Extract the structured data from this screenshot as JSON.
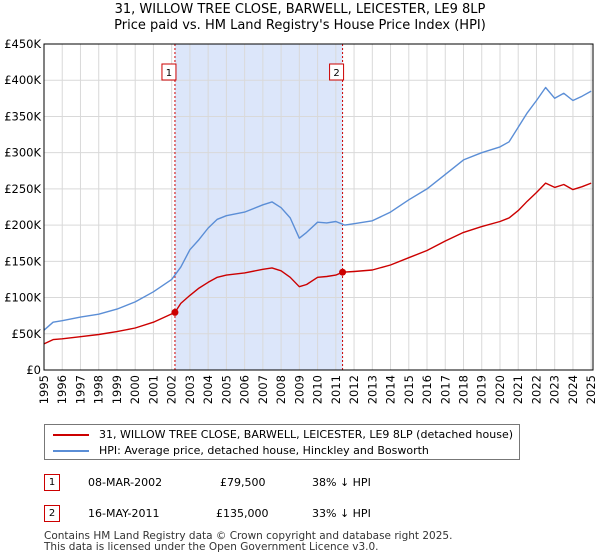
{
  "title_line1": "31, WILLOW TREE CLOSE, BARWELL, LEICESTER, LE9 8LP",
  "title_line2": "Price paid vs. HM Land Registry's House Price Index (HPI)",
  "colors": {
    "property": "#cc0000",
    "hpi": "#5b8ed6",
    "shade": "#dce6fa",
    "grid": "#d9d9d9",
    "marker_line": "#cc0000"
  },
  "chart_data": {
    "type": "line",
    "xlabel": "",
    "ylabel": "",
    "xlim": [
      1995,
      2025.1
    ],
    "ylim": [
      0,
      450000
    ],
    "yticks": [
      0,
      50000,
      100000,
      150000,
      200000,
      250000,
      300000,
      350000,
      400000,
      450000
    ],
    "ytick_labels": [
      "£0",
      "£50K",
      "£100K",
      "£150K",
      "£200K",
      "£250K",
      "£300K",
      "£350K",
      "£400K",
      "£450K"
    ],
    "xticks": [
      1995,
      1996,
      1997,
      1998,
      1999,
      2000,
      2001,
      2002,
      2003,
      2004,
      2005,
      2006,
      2007,
      2008,
      2009,
      2010,
      2011,
      2012,
      2013,
      2014,
      2015,
      2016,
      2017,
      2018,
      2019,
      2020,
      2021,
      2022,
      2023,
      2024,
      2025
    ],
    "xtick_labels": [
      "1995",
      "1996",
      "1997",
      "1998",
      "1999",
      "2000",
      "2001",
      "2002",
      "2003",
      "2004",
      "2005",
      "2006",
      "2007",
      "2008",
      "2009",
      "2010",
      "2011",
      "2012",
      "2013",
      "2014",
      "2015",
      "2016",
      "2017",
      "2018",
      "2019",
      "2020",
      "2021",
      "2022",
      "2023",
      "2024",
      "2025"
    ],
    "shaded_range": [
      2002.18,
      2011.37
    ],
    "series": [
      {
        "name": "31, WILLOW TREE CLOSE, BARWELL, LEICESTER, LE9 8LP (detached house)",
        "color": "#cc0000",
        "x": [
          1995,
          1995.5,
          1996,
          1997,
          1998,
          1999,
          2000,
          2001,
          2002.18,
          2002.5,
          2003,
          2003.5,
          2004,
          2004.5,
          2005,
          2006,
          2007,
          2007.5,
          2008,
          2008.5,
          2009,
          2009.4,
          2010,
          2010.5,
          2011,
          2011.37,
          2012,
          2013,
          2014,
          2015,
          2016,
          2017,
          2018,
          2019,
          2020,
          2020.5,
          2021,
          2021.5,
          2022,
          2022.5,
          2023,
          2023.5,
          2024,
          2024.5,
          2025
        ],
        "values": [
          36000,
          42000,
          43000,
          46000,
          49000,
          53000,
          58000,
          66000,
          79500,
          92000,
          103000,
          113000,
          121000,
          128000,
          131000,
          134000,
          139000,
          141000,
          137000,
          128000,
          115000,
          118000,
          128000,
          129000,
          131000,
          135000,
          136000,
          138000,
          145000,
          155000,
          165000,
          178000,
          190000,
          198000,
          205000,
          210000,
          220000,
          233000,
          245000,
          258000,
          252000,
          256000,
          249000,
          253000,
          258000
        ]
      },
      {
        "name": "HPI: Average price, detached house, Hinckley and Bosworth",
        "color": "#5b8ed6",
        "x": [
          1995,
          1995.5,
          1996,
          1997,
          1998,
          1999,
          2000,
          2001,
          2002,
          2002.5,
          2003,
          2003.5,
          2004,
          2004.5,
          2005,
          2006,
          2007,
          2007.5,
          2008,
          2008.5,
          2009,
          2009.4,
          2010,
          2010.5,
          2011,
          2011.5,
          2012,
          2013,
          2014,
          2015,
          2016,
          2017,
          2018,
          2019,
          2020,
          2020.5,
          2021,
          2021.5,
          2022,
          2022.5,
          2023,
          2023.5,
          2024,
          2024.5,
          2025
        ],
        "values": [
          55000,
          66000,
          68000,
          73000,
          77000,
          84000,
          94000,
          108000,
          125000,
          142000,
          166000,
          180000,
          196000,
          208000,
          213000,
          218000,
          228000,
          232000,
          224000,
          210000,
          182000,
          190000,
          204000,
          203000,
          205000,
          200000,
          202000,
          206000,
          218000,
          235000,
          250000,
          270000,
          290000,
          300000,
          308000,
          315000,
          335000,
          355000,
          372000,
          390000,
          375000,
          382000,
          372000,
          378000,
          385000
        ]
      }
    ],
    "markers": [
      {
        "label": "1",
        "x": 2002.18,
        "y": 79500
      },
      {
        "label": "2",
        "x": 2011.37,
        "y": 135000
      }
    ]
  },
  "legend": [
    {
      "label": "31, WILLOW TREE CLOSE, BARWELL, LEICESTER, LE9 8LP (detached house)",
      "color": "#cc0000"
    },
    {
      "label": "HPI: Average price, detached house, Hinckley and Bosworth",
      "color": "#5b8ed6"
    }
  ],
  "transactions": [
    {
      "num": "1",
      "date": "08-MAR-2002",
      "price": "£79,500",
      "hpi": "38% ↓ HPI"
    },
    {
      "num": "2",
      "date": "16-MAY-2011",
      "price": "£135,000",
      "hpi": "33% ↓ HPI"
    }
  ],
  "footer_line1": "Contains HM Land Registry data © Crown copyright and database right 2025.",
  "footer_line2": "This data is licensed under the Open Government Licence v3.0."
}
